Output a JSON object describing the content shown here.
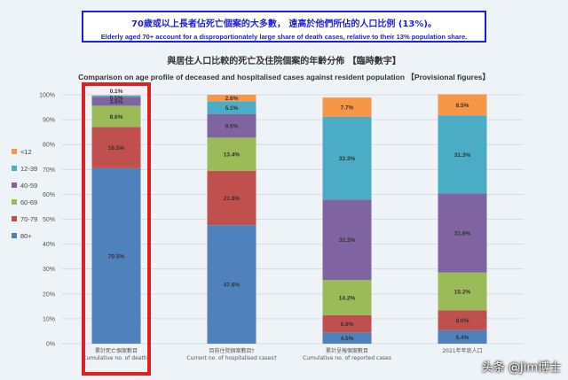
{
  "notice": {
    "zh": "70歲或以上長者佔死亡個案的大多數， 遠高於他們所佔的人口比例 (13%)。",
    "en": "Elderly aged 70+ account for a disproportionately large share of death cases, relative to their 13% population share."
  },
  "titles": {
    "zh": "與居住人口比較的死亡及住院個案的年齡分佈 【臨時數字】",
    "en": "Comparison on age profile of deceased and hospitalised cases against resident population 【Provisional figures】"
  },
  "watermark": "头条 @Jim博士",
  "chart_data": {
    "type": "bar",
    "stacked": true,
    "ylim": [
      0,
      100
    ],
    "y_ticks": [
      "0%",
      "10%",
      "20%",
      "30%",
      "40%",
      "50%",
      "60%",
      "70%",
      "80%",
      "90%",
      "100%"
    ],
    "categories": [
      {
        "zh": "累計死亡個案數目",
        "en": "Cumulative no. of deaths"
      },
      {
        "zh": "目前住院個案數目†",
        "en": "Current no. of hospitalised cases†"
      },
      {
        "zh": "累計呈報個案數目",
        "en": "Cumulative no. of reported cases"
      },
      {
        "zh": "2021年年底人口",
        "en": ""
      }
    ],
    "series": [
      {
        "name": "80+",
        "color": "#4f81bd",
        "values": [
          70.5,
          47.6,
          4.5,
          5.4
        ],
        "labels": [
          "70.5%",
          "47.6%",
          "4.5%",
          "5.4%"
        ]
      },
      {
        "name": "70-79",
        "color": "#c0504d",
        "values": [
          16.5,
          21.8,
          6.9,
          8.0
        ],
        "labels": [
          "16.5%",
          "21.8%",
          "6.9%",
          "8.0%"
        ]
      },
      {
        "name": "60-69",
        "color": "#9bbb59",
        "values": [
          8.6,
          13.4,
          14.2,
          15.2
        ],
        "labels": [
          "8.6%",
          "13.4%",
          "14.2%",
          "15.2%"
        ]
      },
      {
        "name": "40-59",
        "color": "#8064a2",
        "values": [
          3.6,
          9.5,
          32.3,
          31.8
        ],
        "labels": [
          "3.6%",
          "9.5%",
          "32.3%",
          "31.8%"
        ]
      },
      {
        "name": "12-39",
        "color": "#4bacc6",
        "values": [
          0.5,
          5.1,
          33.3,
          31.3
        ],
        "labels": [
          "0.5%",
          "5.1%",
          "33.3%",
          "31.3%"
        ]
      },
      {
        "name": "<12",
        "color": "#f79646",
        "values": [
          0.1,
          2.6,
          7.7,
          8.5
        ],
        "labels": [
          "0.1%",
          "2.6%",
          "7.7%",
          "8.5%"
        ]
      }
    ],
    "legend_order": [
      "<12",
      "12-39",
      "40-59",
      "60-69",
      "70-79",
      "80+"
    ],
    "legend_position": "left",
    "highlight": {
      "category_index": 0,
      "color": "#e02020"
    }
  }
}
